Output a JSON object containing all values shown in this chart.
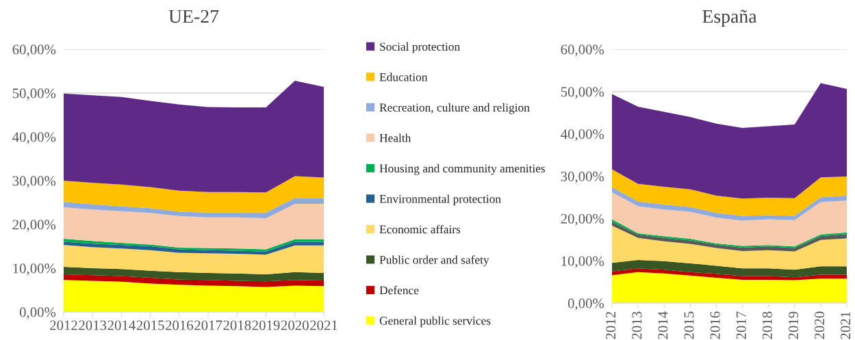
{
  "chart_data": [
    {
      "type": "area",
      "stacked": true,
      "title": "UE-27",
      "x": [
        2012,
        2013,
        2014,
        2015,
        2016,
        2017,
        2018,
        2019,
        2020,
        2021
      ],
      "xlim": [
        2012,
        2021
      ],
      "xticks": [
        2012,
        2013,
        2014,
        2015,
        2016,
        2017,
        2018,
        2019,
        2020,
        2021
      ],
      "ylim": [
        0,
        60
      ],
      "yticks": [
        {
          "value": 0,
          "label": "0,00%"
        },
        {
          "value": 10,
          "label": "10,00%"
        },
        {
          "value": 20,
          "label": "20,00%"
        },
        {
          "value": 30,
          "label": "30,00%"
        },
        {
          "value": 40,
          "label": "40,00%"
        },
        {
          "value": 50,
          "label": "50,00%"
        },
        {
          "value": 60,
          "label": "60,00%"
        }
      ],
      "grid": "y",
      "legend": "right",
      "series": [
        {
          "name": "General public services",
          "color": "#ffff00",
          "values": [
            7.3,
            7.1,
            6.9,
            6.5,
            6.2,
            6.0,
            5.9,
            5.7,
            6.0,
            5.9
          ]
        },
        {
          "name": "Defence",
          "color": "#c00000",
          "values": [
            1.3,
            1.3,
            1.3,
            1.3,
            1.2,
            1.3,
            1.2,
            1.3,
            1.3,
            1.3
          ]
        },
        {
          "name": "Public order and safety",
          "color": "#375623",
          "values": [
            1.7,
            1.6,
            1.6,
            1.6,
            1.7,
            1.6,
            1.7,
            1.6,
            1.8,
            1.7
          ]
        },
        {
          "name": "Economic affairs",
          "color": "#ffd966",
          "values": [
            5.0,
            4.8,
            4.7,
            4.7,
            4.4,
            4.5,
            4.5,
            4.5,
            6.1,
            6.3
          ]
        },
        {
          "name": "Environmental protection",
          "color": "#255e91",
          "values": [
            0.7,
            0.8,
            0.8,
            0.9,
            0.8,
            0.7,
            0.7,
            0.7,
            0.8,
            0.8
          ]
        },
        {
          "name": "Housing and community amenities",
          "color": "#00b050",
          "values": [
            0.7,
            0.6,
            0.5,
            0.4,
            0.4,
            0.5,
            0.5,
            0.5,
            0.6,
            0.6
          ]
        },
        {
          "name": "Health",
          "color": "#f8cbad",
          "values": [
            7.2,
            7.2,
            7.2,
            7.2,
            7.2,
            7.0,
            7.1,
            7.1,
            8.1,
            8.1
          ]
        },
        {
          "name": "Recreation, culture and religion",
          "color": "#8faadc",
          "values": [
            1.2,
            1.2,
            1.1,
            1.1,
            1.0,
            1.1,
            1.1,
            1.3,
            1.3,
            1.3
          ]
        },
        {
          "name": "Education",
          "color": "#ffc000",
          "values": [
            4.9,
            4.9,
            5.0,
            4.8,
            4.8,
            4.7,
            4.7,
            4.6,
            5.0,
            4.7
          ]
        },
        {
          "name": "Social protection",
          "color": "#5f2987",
          "values": [
            19.9,
            20.0,
            20.0,
            19.7,
            19.7,
            19.4,
            19.3,
            19.4,
            21.8,
            20.7
          ]
        }
      ]
    },
    {
      "type": "area",
      "stacked": true,
      "title": "España",
      "x": [
        2012,
        2013,
        2014,
        2015,
        2016,
        2017,
        2018,
        2019,
        2020,
        2021
      ],
      "xlim": [
        2012,
        2021
      ],
      "xticks": [
        2012,
        2013,
        2014,
        2015,
        2016,
        2017,
        2018,
        2019,
        2020,
        2021
      ],
      "ylim": [
        0,
        60
      ],
      "yticks": [
        {
          "value": 0,
          "label": "0,00%"
        },
        {
          "value": 10,
          "label": "10,00%"
        },
        {
          "value": 20,
          "label": "20,00%"
        },
        {
          "value": 30,
          "label": "30,00%"
        },
        {
          "value": 40,
          "label": "40,00%"
        },
        {
          "value": 50,
          "label": "50,00%"
        },
        {
          "value": 60,
          "label": "60,00%"
        }
      ],
      "grid": "y",
      "series": [
        {
          "color": "#ffff00",
          "values": [
            6.6,
            7.3,
            7.0,
            6.5,
            6.0,
            5.5,
            5.5,
            5.4,
            5.8,
            5.8
          ]
        },
        {
          "color": "#c00000",
          "values": [
            0.9,
            0.9,
            0.9,
            0.8,
            0.9,
            0.9,
            0.9,
            0.7,
            0.9,
            0.9
          ]
        },
        {
          "color": "#375623",
          "values": [
            2.0,
            2.0,
            2.0,
            2.1,
            1.9,
            1.8,
            1.8,
            1.8,
            2.0,
            2.0
          ]
        },
        {
          "color": "#ffd966",
          "values": [
            8.8,
            5.2,
            4.7,
            4.6,
            4.2,
            4.1,
            4.3,
            4.3,
            6.2,
            6.6
          ]
        },
        {
          "color": "#595959",
          "values": [
            0.9,
            0.8,
            0.8,
            0.8,
            0.8,
            0.8,
            0.9,
            0.8,
            0.9,
            1.0
          ]
        },
        {
          "color": "#00b050",
          "values": [
            0.6,
            0.3,
            0.4,
            0.4,
            0.3,
            0.4,
            0.3,
            0.4,
            0.4,
            0.4
          ]
        },
        {
          "color": "#f8cbad",
          "values": [
            6.4,
            6.4,
            6.3,
            6.4,
            6.1,
            6.0,
            6.1,
            6.2,
            7.7,
            7.5
          ]
        },
        {
          "color": "#8faadc",
          "values": [
            1.2,
            1.1,
            1.2,
            1.1,
            1.1,
            1.1,
            1.0,
            1.0,
            1.1,
            1.2
          ]
        },
        {
          "color": "#ffc000",
          "values": [
            4.2,
            4.2,
            4.2,
            4.2,
            4.1,
            4.1,
            4.1,
            4.2,
            4.7,
            4.5
          ]
        },
        {
          "color": "#5f2987",
          "values": [
            17.8,
            18.2,
            17.7,
            17.1,
            17.0,
            16.7,
            16.9,
            17.4,
            22.3,
            20.7
          ]
        }
      ]
    }
  ]
}
